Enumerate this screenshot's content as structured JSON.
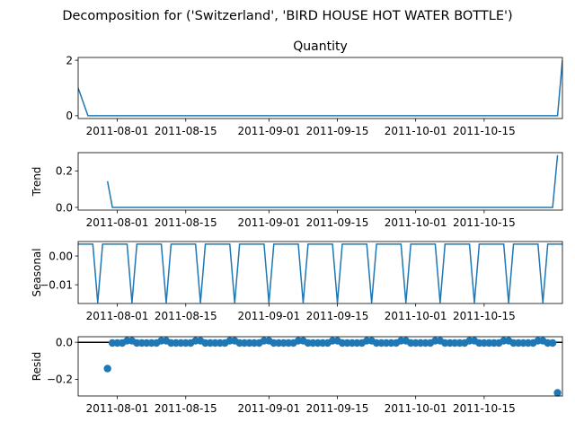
{
  "chart_data": {
    "type": "line",
    "title": "Decomposition for ('Switzerland', 'BIRD HOUSE HOT WATER BOTTLE')",
    "x_start": "2011-07-24",
    "x_end": "2011-10-31",
    "x_ticks": [
      "2011-08-01",
      "2011-08-15",
      "2011-09-01",
      "2011-09-15",
      "2011-10-01",
      "2011-10-15"
    ],
    "panels": [
      {
        "key": "observed",
        "title": "Quantity",
        "ylabel": "",
        "type": "line",
        "ylim": [
          -0.1,
          2.1
        ],
        "yticks": [
          0,
          2
        ],
        "ytick_labels": [
          "0",
          "2"
        ],
        "series": [
          {
            "x": [
              "2011-07-24",
              "2011-07-26",
              "2011-10-30",
              "2011-10-31"
            ],
            "y": [
              1,
              0,
              0,
              2
            ]
          }
        ]
      },
      {
        "key": "trend",
        "title": "",
        "ylabel": "Trend",
        "type": "line",
        "ylim": [
          -0.015,
          0.3
        ],
        "yticks": [
          0,
          0.2
        ],
        "ytick_labels": [
          "0.0",
          "0.2"
        ],
        "series": [
          {
            "x": [
              "2011-07-30",
              "2011-07-31",
              "2011-10-29",
              "2011-10-30"
            ],
            "y": [
              0.143,
              0,
              0,
              0.286
            ]
          }
        ]
      },
      {
        "key": "seasonal",
        "title": "",
        "ylabel": "Seasonal",
        "type": "line",
        "ylim": [
          -0.0165,
          0.005
        ],
        "yticks": [
          -0.01,
          0
        ],
        "ytick_labels": [
          "−0.01",
          "0.00"
        ],
        "pattern": {
          "period_days": 7,
          "high": 0.0041,
          "low": -0.0163,
          "low_day_offset": 4,
          "start": "2011-07-24"
        }
      },
      {
        "key": "resid",
        "title": "",
        "ylabel": "Resid",
        "type": "scatter",
        "ylim": [
          -0.29,
          0.03
        ],
        "yticks": [
          -0.2,
          0
        ],
        "ytick_labels": [
          "−0.2",
          "0.0"
        ],
        "zero_line": true,
        "points": {
          "start": "2011-07-31",
          "end": "2011-10-29",
          "base": -0.004,
          "high": 0.008,
          "high_day_offsets": [
            3,
            4
          ],
          "period_days": 7,
          "outliers": [
            {
              "x": "2011-07-30",
              "y": -0.142
            },
            {
              "x": "2011-10-30",
              "y": -0.273
            }
          ]
        }
      }
    ]
  }
}
